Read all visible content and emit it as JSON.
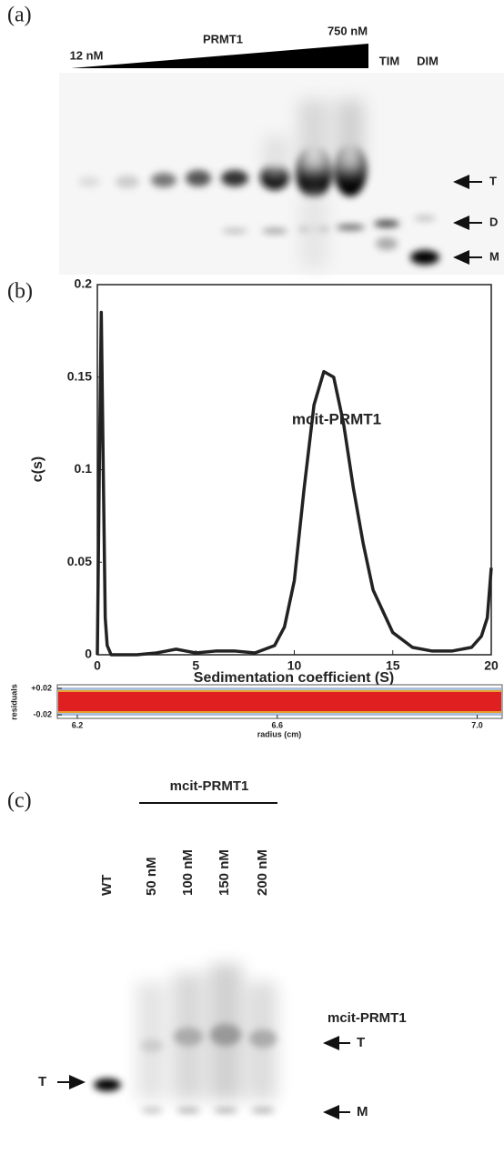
{
  "panel_a": {
    "label": "(a)",
    "gradient_start": "12 nM",
    "gradient_title": "PRMT1",
    "gradient_end": "750 nM",
    "lanes": [
      "TIM",
      "DIM"
    ],
    "bands": [
      "T",
      "D",
      "M"
    ]
  },
  "panel_b": {
    "label": "(b)"
  },
  "chart_data": [
    {
      "type": "line",
      "xlabel": "Sedimentation coefficient (S)",
      "ylabel": "c(s)",
      "annotation": "mcit-PRMT1",
      "x": [
        0,
        0.1,
        0.2,
        0.3,
        0.4,
        0.5,
        0.7,
        1,
        2,
        3,
        3.5,
        4,
        4.5,
        5,
        6,
        7,
        8,
        9,
        9.5,
        10,
        10.5,
        11,
        11.5,
        12,
        12.5,
        13,
        13.5,
        14,
        15,
        16,
        17,
        18,
        19,
        19.5,
        19.8,
        20
      ],
      "series": [
        {
          "color": "#222222",
          "values": [
            0,
            0.1,
            0.185,
            0.1,
            0.02,
            0.005,
            0,
            0,
            0,
            0.001,
            0.002,
            0.003,
            0.002,
            0.001,
            0.002,
            0.002,
            0.001,
            0.005,
            0.015,
            0.04,
            0.09,
            0.135,
            0.153,
            0.15,
            0.125,
            0.09,
            0.06,
            0.035,
            0.012,
            0.004,
            0.002,
            0.002,
            0.004,
            0.01,
            0.02,
            0.047
          ]
        }
      ],
      "xlim": [
        0,
        20
      ],
      "ylim": [
        0,
        0.2
      ],
      "xticks": [
        0,
        5,
        10,
        15,
        20
      ],
      "yticks": [
        0,
        0.05,
        0.1,
        0.15,
        0.2
      ]
    },
    {
      "type": "residuals",
      "xlabel": "radius (cm)",
      "ylabel": "residuals",
      "xlim": [
        6.16,
        7.05
      ],
      "ylim": [
        -0.02,
        0.02
      ],
      "xticks": [
        6.2,
        6.6,
        {
          "value": 7,
          "label": "7.0"
        }
      ],
      "yticks": [
        {
          "value": 0.02,
          "label": "+0.02"
        },
        -0.02
      ]
    }
  ],
  "panel_c": {
    "label": "(c)",
    "group_label": "mcit-PRMT1",
    "lanes": [
      "WT",
      "50 nM",
      "100 nM",
      "150 nM",
      "200 nM"
    ],
    "protein_label": "mcit-PRMT1",
    "bands_right": [
      "T",
      "M"
    ],
    "band_left": "T"
  }
}
